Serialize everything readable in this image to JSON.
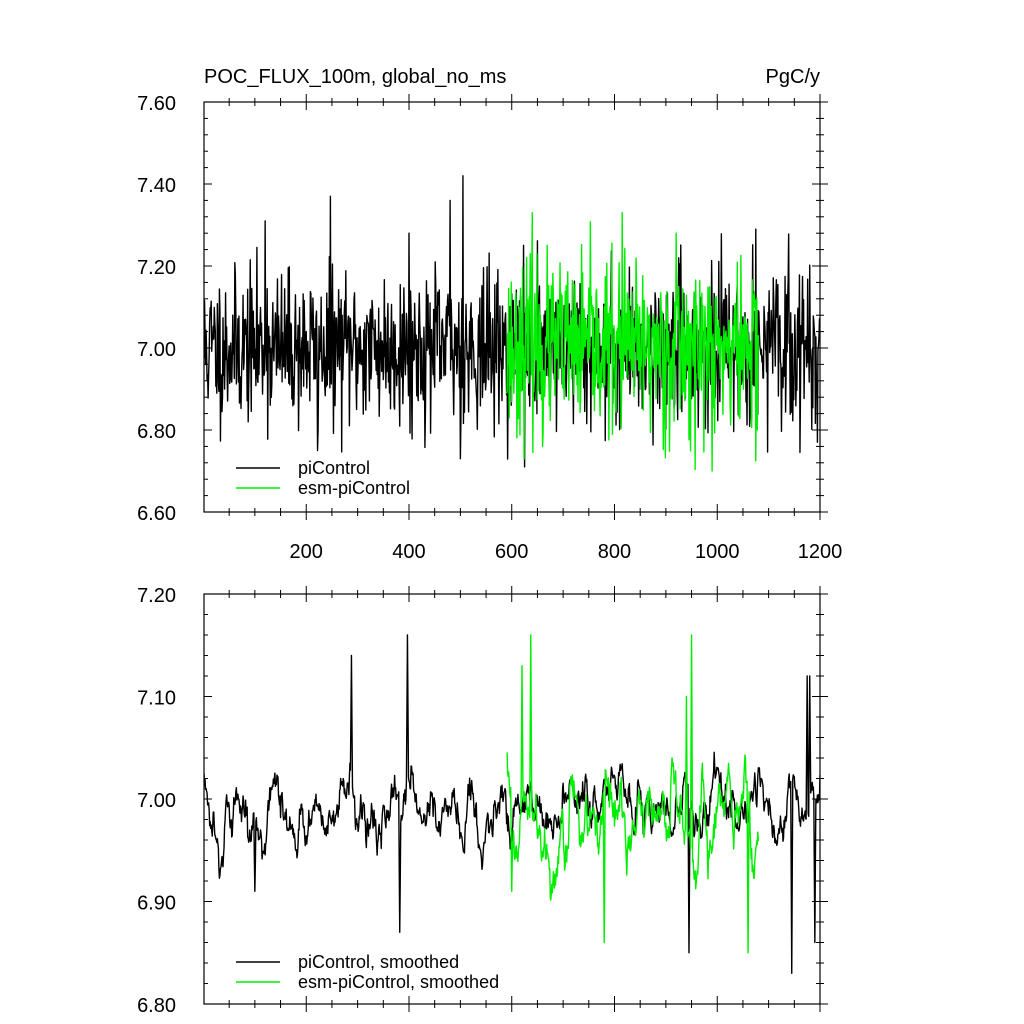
{
  "colors": {
    "picontrol": "#000000",
    "esm_picontrol": "#00ee00"
  },
  "chart_data": [
    {
      "type": "line",
      "title": "POC_FLUX_100m, global_no_ms",
      "units": "PgC/y",
      "xlim": [
        1,
        1200
      ],
      "ylim": [
        6.6,
        7.6
      ],
      "x_ticks": [
        200,
        400,
        600,
        800,
        1000,
        1200
      ],
      "x_tick_labels": [
        "200",
        "400",
        "600",
        "800",
        "1000",
        "1200"
      ],
      "y_ticks": [
        6.6,
        6.8,
        7.0,
        7.2,
        7.4,
        7.6
      ],
      "y_tick_labels": [
        "6.60",
        "6.80",
        "7.00",
        "7.20",
        "7.40",
        "7.60"
      ],
      "legend_position": "bottom-left",
      "series": [
        {
          "name": "piControl",
          "color": "#000000",
          "generator": {
            "x_start": 1,
            "x_end": 1200,
            "mean": 7.0,
            "std": 0.09,
            "seed": 11,
            "smooth": 0
          },
          "peaks": [
            [
              505,
              7.42
            ],
            [
              247,
              7.37
            ],
            [
              480,
              7.36
            ],
            [
              400,
              7.28
            ],
            [
              120,
              7.31
            ],
            [
              1075,
              7.29
            ],
            [
              222,
              6.75
            ],
            [
              500,
              6.73
            ],
            [
              625,
              6.71
            ],
            [
              1195,
              6.77
            ]
          ]
        },
        {
          "name": "esm-piControl",
          "color": "#00ee00",
          "generator": {
            "x_start": 590,
            "x_end": 1080,
            "mean": 7.0,
            "std": 0.1,
            "seed": 23,
            "smooth": 0
          },
          "peaks": [
            [
              640,
              7.33
            ],
            [
              815,
              7.33
            ],
            [
              990,
              6.7
            ],
            [
              660,
              6.76
            ],
            [
              920,
              7.28
            ]
          ]
        }
      ]
    },
    {
      "type": "line",
      "xlim": [
        1,
        1200
      ],
      "ylim": [
        6.8,
        7.2
      ],
      "x_ticks": [
        200,
        400,
        600,
        800,
        1000,
        1200
      ],
      "x_tick_labels": [],
      "y_ticks": [
        6.8,
        6.9,
        7.0,
        7.1,
        7.2
      ],
      "y_tick_labels": [
        "6.80",
        "6.90",
        "7.00",
        "7.10",
        "7.20"
      ],
      "legend_position": "bottom-left",
      "series": [
        {
          "name": "piControl, smoothed",
          "color": "#000000",
          "generator": {
            "x_start": 1,
            "x_end": 1200,
            "mean": 6.99,
            "std": 0.028,
            "seed": 5,
            "smooth": 5
          },
          "peaks": [
            [
              397,
              7.16
            ],
            [
              288,
              7.14
            ],
            [
              1175,
              7.12
            ],
            [
              1180,
              7.12
            ],
            [
              382,
              6.87
            ],
            [
              1145,
              6.83
            ],
            [
              945,
              6.85
            ],
            [
              1190,
              6.86
            ],
            [
              100,
              6.91
            ]
          ]
        },
        {
          "name": "esm-piControl, smoothed",
          "color": "#00ee00",
          "generator": {
            "x_start": 590,
            "x_end": 1080,
            "mean": 6.98,
            "std": 0.04,
            "seed": 41,
            "smooth": 5
          },
          "peaks": [
            [
              637,
              7.16
            ],
            [
              950,
              7.16
            ],
            [
              940,
              7.1
            ],
            [
              620,
              7.13
            ],
            [
              780,
              6.86
            ],
            [
              1060,
              6.85
            ],
            [
              600,
              6.91
            ]
          ]
        }
      ]
    }
  ]
}
